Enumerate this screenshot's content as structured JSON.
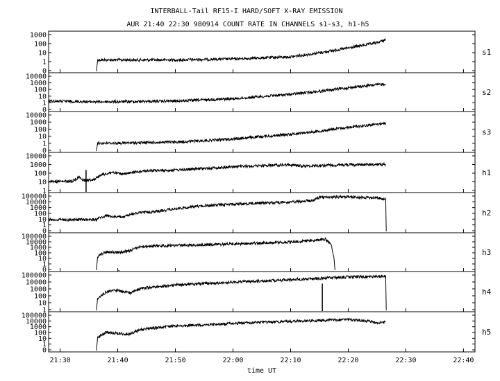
{
  "chart_data": {
    "type": "line",
    "title": "INTERBALL-Tail RF15-I HARD/SOFT X-RAY EMISSION",
    "subtitle": "AUR 21:40 22:30 980914  COUNT RATE IN CHANNELS s1-s3, h1-h5",
    "xlabel": "time UT",
    "x_ticks": [
      "21:30",
      "21:40",
      "21:50",
      "22:00",
      "22:10",
      "22:20",
      "22:30",
      "22:40"
    ],
    "x_tick_minutes": [
      0,
      10,
      20,
      30,
      40,
      50,
      60,
      70
    ],
    "xlim_minutes": [
      -2,
      72
    ],
    "y_scale": "log",
    "grid": false,
    "legend": "none",
    "line_color": "#000000",
    "panels": [
      {
        "name": "s1",
        "y_ticks": [
          "1000",
          "100",
          "10",
          "1",
          "0"
        ],
        "ylim": [
          0.3,
          2000
        ],
        "points": [
          [
            6.3,
            0.3
          ],
          [
            6.5,
            4
          ],
          [
            10,
            4
          ],
          [
            20,
            4
          ],
          [
            30,
            5
          ],
          [
            40,
            8
          ],
          [
            45,
            20
          ],
          [
            50,
            60
          ],
          [
            55,
            200
          ],
          [
            56.5,
            400
          ]
        ]
      },
      {
        "name": "s2",
        "y_ticks": [
          "10000",
          "1000",
          "100",
          "10",
          "1",
          "0"
        ],
        "ylim": [
          0.3,
          20000
        ],
        "points": [
          [
            -2,
            5
          ],
          [
            5,
            4
          ],
          [
            10,
            4
          ],
          [
            20,
            5
          ],
          [
            30,
            10
          ],
          [
            40,
            40
          ],
          [
            45,
            100
          ],
          [
            50,
            300
          ],
          [
            56.5,
            1000
          ]
        ]
      },
      {
        "name": "s3",
        "y_ticks": [
          "10000",
          "1000",
          "100",
          "10",
          "1",
          "0"
        ],
        "ylim": [
          0.3,
          20000
        ],
        "points": [
          [
            6.3,
            0.3
          ],
          [
            6.5,
            3
          ],
          [
            10,
            3
          ],
          [
            20,
            4
          ],
          [
            30,
            10
          ],
          [
            40,
            40
          ],
          [
            45,
            100
          ],
          [
            50,
            300
          ],
          [
            56.5,
            1000
          ]
        ]
      },
      {
        "name": "h1",
        "y_ticks": [
          "10000",
          "1000",
          "100",
          "10",
          "1"
        ],
        "ylim": [
          0.5,
          20000
        ],
        "points": [
          [
            -2,
            8
          ],
          [
            2,
            8
          ],
          [
            3.5,
            30
          ],
          [
            4,
            10
          ],
          [
            6,
            15
          ],
          [
            7,
            50
          ],
          [
            9,
            100
          ],
          [
            11,
            60
          ],
          [
            14,
            150
          ],
          [
            20,
            200
          ],
          [
            25,
            300
          ],
          [
            30,
            500
          ],
          [
            35,
            700
          ],
          [
            40,
            900
          ],
          [
            42,
            600
          ],
          [
            45,
            700
          ],
          [
            50,
            900
          ],
          [
            56.5,
            1000
          ]
        ],
        "spikes": [
          [
            4.5,
            200
          ]
        ]
      },
      {
        "name": "h2",
        "y_ticks": [
          "100000",
          "10000",
          "1000",
          "100",
          "10",
          "1",
          "0"
        ],
        "ylim": [
          0.3,
          200000
        ],
        "points": [
          [
            -2,
            20
          ],
          [
            6.3,
            20
          ],
          [
            6.5,
            30
          ],
          [
            8,
            80
          ],
          [
            9,
            60
          ],
          [
            11,
            50
          ],
          [
            13,
            200
          ],
          [
            17,
            400
          ],
          [
            20,
            1000
          ],
          [
            25,
            3000
          ],
          [
            30,
            5000
          ],
          [
            35,
            8000
          ],
          [
            40,
            10000
          ],
          [
            44,
            20000
          ],
          [
            45,
            60000
          ],
          [
            50,
            70000
          ],
          [
            55,
            50000
          ],
          [
            56.5,
            30000
          ],
          [
            56.6,
            0.3
          ]
        ]
      },
      {
        "name": "h3",
        "y_ticks": [
          "100000",
          "10000",
          "1000",
          "100",
          "10",
          "1",
          "0"
        ],
        "ylim": [
          0.3,
          200000
        ],
        "points": [
          [
            6.3,
            0.3
          ],
          [
            6.5,
            50
          ],
          [
            8,
            300
          ],
          [
            10,
            200
          ],
          [
            12,
            400
          ],
          [
            14,
            2000
          ],
          [
            20,
            3000
          ],
          [
            30,
            5000
          ],
          [
            40,
            10000
          ],
          [
            44,
            20000
          ],
          [
            46,
            30000
          ],
          [
            47,
            5000
          ],
          [
            47.5,
            50
          ],
          [
            47.7,
            0.3
          ]
        ],
        "spikes": [
          [
            10.2,
            0.3
          ]
        ]
      },
      {
        "name": "h4",
        "y_ticks": [
          "100000",
          "10000",
          "1000",
          "100",
          "10",
          "1"
        ],
        "ylim": [
          0.5,
          200000
        ],
        "points": [
          [
            6.3,
            0.5
          ],
          [
            6.5,
            30
          ],
          [
            8,
            300
          ],
          [
            10,
            500
          ],
          [
            12,
            200
          ],
          [
            14,
            1000
          ],
          [
            20,
            3000
          ],
          [
            25,
            5000
          ],
          [
            30,
            8000
          ],
          [
            40,
            20000
          ],
          [
            45,
            30000
          ],
          [
            50,
            50000
          ],
          [
            56.5,
            60000
          ],
          [
            56.6,
            0.5
          ]
        ],
        "spikes": [
          [
            45.5,
            5000
          ]
        ]
      },
      {
        "name": "h5",
        "y_ticks": [
          "100000",
          "10000",
          "1000",
          "100",
          "10",
          "1",
          "0"
        ],
        "ylim": [
          0.3,
          200000
        ],
        "points": [
          [
            6.3,
            0.3
          ],
          [
            6.5,
            30
          ],
          [
            8,
            200
          ],
          [
            10,
            150
          ],
          [
            12,
            100
          ],
          [
            14,
            600
          ],
          [
            20,
            2000
          ],
          [
            25,
            3000
          ],
          [
            30,
            5000
          ],
          [
            40,
            10000
          ],
          [
            50,
            20000
          ],
          [
            54,
            10000
          ],
          [
            55,
            5000
          ],
          [
            56.5,
            8000
          ]
        ]
      }
    ]
  }
}
